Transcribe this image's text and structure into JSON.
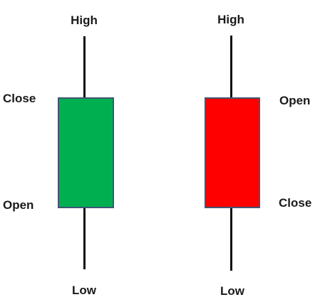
{
  "candles": [
    {
      "kind": "bullish",
      "high_label": "High",
      "top_label": "Close",
      "bottom_label": "Open",
      "low_label": "Low",
      "body_color": "#00b050"
    },
    {
      "kind": "bearish",
      "high_label": "High",
      "top_label": "Open",
      "bottom_label": "Close",
      "low_label": "Low",
      "body_color": "#ff0000"
    }
  ]
}
